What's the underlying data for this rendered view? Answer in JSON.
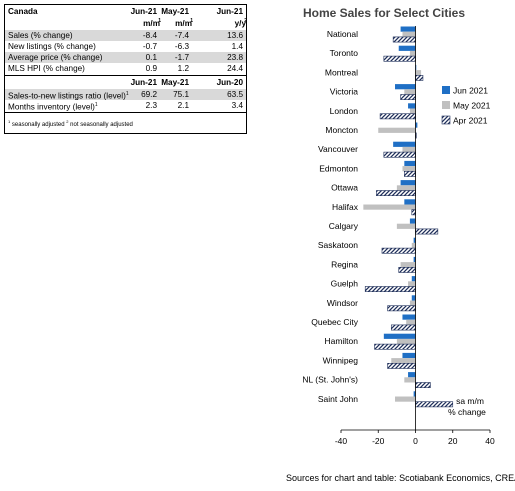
{
  "table": {
    "title": "Canada",
    "col_headers": [
      "Jun-21",
      "May-21",
      "Jun-21"
    ],
    "unit_headers": [
      {
        "base": "m/m",
        "sup": "1"
      },
      {
        "base": "m/m",
        "sup": "1"
      },
      {
        "base": "y/y",
        "sup": "2"
      }
    ],
    "rows_top": [
      {
        "label": "Sales (% change)",
        "values": [
          "-8.4",
          "-7.4",
          "13.6"
        ],
        "shaded": true
      },
      {
        "label": "New listings (% change)",
        "values": [
          "-0.7",
          "-6.3",
          "1.4"
        ],
        "shaded": false
      },
      {
        "label": "Average price (% change)",
        "values": [
          "0.1",
          "-1.7",
          "23.8"
        ],
        "shaded": true
      },
      {
        "label": "MLS HPI (% change)",
        "values": [
          "0.9",
          "1.2",
          "24.4"
        ],
        "shaded": false
      }
    ],
    "col_headers_2": [
      "Jun-21",
      "May-21",
      "Jun-20"
    ],
    "rows_bottom": [
      {
        "label": "Sales-to-new listings ratio (level)",
        "sup": "1",
        "values": [
          "69.2",
          "75.1",
          "63.5"
        ],
        "shaded": true
      },
      {
        "label": "Months inventory (level)",
        "sup": "1",
        "values": [
          "2.3",
          "2.1",
          "3.4"
        ],
        "shaded": false
      }
    ],
    "footnote": {
      "sup1": "1",
      "text1": " seasonally adjusted ",
      "sup2": "2",
      "text2": " not seasonally adjusted"
    }
  },
  "chart_data": {
    "type": "bar",
    "orientation": "horizontal",
    "title": "Home Sales for Select Cities",
    "categories": [
      "National",
      "Toronto",
      "Montreal",
      "Victoria",
      "London",
      "Moncton",
      "Vancouver",
      "Edmonton",
      "Ottawa",
      "Halifax",
      "Calgary",
      "Saskatoon",
      "Regina",
      "Guelph",
      "Windsor",
      "Quebec City",
      "Hamilton",
      "Winnipeg",
      "NL (St. John's)",
      "Saint John"
    ],
    "series": [
      {
        "name": "Jun 2021",
        "color": "#1f6fc5",
        "pattern": "solid",
        "values": [
          -8,
          -9,
          0,
          -11,
          -4,
          1,
          -12,
          -6,
          -8,
          -6,
          -3,
          -1,
          -1,
          -2,
          -2,
          -7,
          -17,
          -7,
          -4,
          -1
        ]
      },
      {
        "name": "May 2021",
        "color": "#c0c0c0",
        "pattern": "solid",
        "values": [
          -7,
          -3,
          3,
          -6,
          -3,
          -20,
          -7,
          -7,
          -10,
          -28,
          -10,
          -2,
          -8,
          -4,
          -3,
          -5,
          -10,
          -13,
          -6,
          -11
        ]
      },
      {
        "name": "Apr 2021",
        "color": "#1f2f5a",
        "pattern": "hatch",
        "values": [
          -12,
          -17,
          4,
          -8,
          -19,
          0,
          -17,
          -6,
          -21,
          -2,
          12,
          -18,
          -9,
          -27,
          -15,
          -13,
          -22,
          -15,
          8,
          20
        ]
      }
    ],
    "xlim": [
      -40,
      40
    ],
    "xticks": [
      -40,
      -20,
      0,
      20,
      40
    ],
    "xtick_labels": [
      "-40",
      "-20",
      "0",
      "20",
      "40"
    ],
    "axis_note_line1": "sa m/m",
    "axis_note_line2": "% change",
    "legend_position": "right",
    "grid": false
  },
  "source": "Sources for chart and table: Scotiabank Economics, CREA."
}
